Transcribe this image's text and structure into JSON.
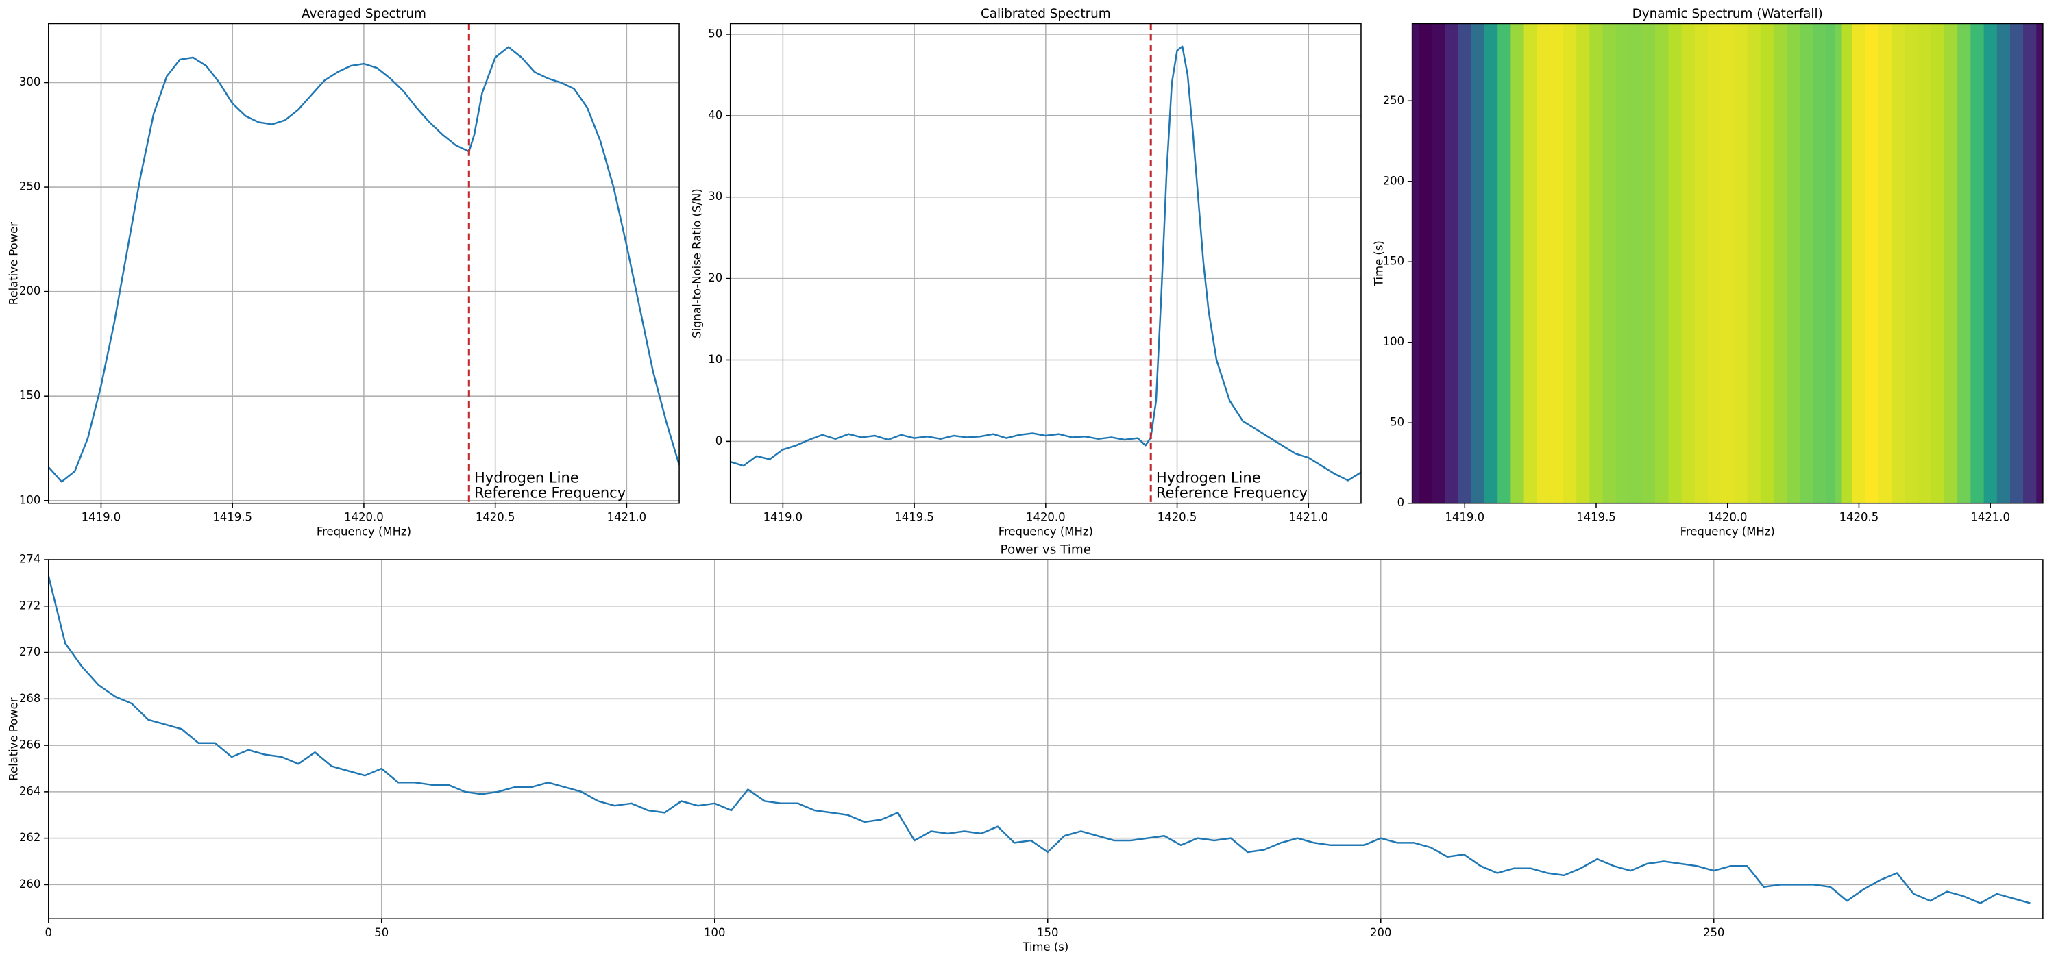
{
  "chart_data": [
    {
      "type": "line",
      "title": "Averaged Spectrum",
      "x_label": "Frequency (MHz)",
      "y_label": "Relative Power",
      "color": "#1f77b4",
      "grid": true,
      "x": [
        1418.8,
        1418.85,
        1418.9,
        1418.95,
        1419.0,
        1419.05,
        1419.1,
        1419.15,
        1419.2,
        1419.25,
        1419.3,
        1419.35,
        1419.4,
        1419.45,
        1419.5,
        1419.55,
        1419.6,
        1419.65,
        1419.7,
        1419.75,
        1419.8,
        1419.85,
        1419.9,
        1419.95,
        1420.0,
        1420.05,
        1420.1,
        1420.15,
        1420.2,
        1420.25,
        1420.3,
        1420.35,
        1420.4,
        1420.42,
        1420.45,
        1420.5,
        1420.55,
        1420.6,
        1420.65,
        1420.7,
        1420.75,
        1420.8,
        1420.85,
        1420.9,
        1420.95,
        1421.0,
        1421.05,
        1421.1,
        1421.15,
        1421.2
      ],
      "values": [
        116,
        109,
        114,
        130,
        155,
        185,
        220,
        255,
        285,
        303,
        311,
        312,
        308,
        300,
        290,
        284,
        281,
        280,
        282,
        287,
        294,
        301,
        305,
        308,
        309,
        307,
        302,
        296,
        288,
        281,
        275,
        270,
        267,
        275,
        295,
        312,
        317,
        312,
        305,
        302,
        300,
        297,
        288,
        272,
        250,
        222,
        192,
        162,
        138,
        117
      ],
      "xlim": [
        1418.8,
        1421.2
      ],
      "xticks": [
        {
          "value": 1419,
          "label": "1419.0"
        },
        1419.5,
        {
          "value": 1420,
          "label": "1420.0"
        },
        1420.5,
        {
          "value": 1421,
          "label": "1421.0"
        }
      ],
      "ylim": [
        98.7,
        328.2
      ],
      "yticks": [
        100,
        150,
        200,
        250,
        300
      ],
      "reference_line": {
        "x": 1420.4,
        "color": "#c0282d",
        "annotation": [
          "Hydrogen Line",
          "Reference Frequency"
        ]
      }
    },
    {
      "type": "line",
      "title": "Calibrated Spectrum",
      "x_label": "Frequency (MHz)",
      "y_label": "Signal-to-Noise Ratio (S/N)",
      "color": "#1f77b4",
      "grid": true,
      "x": [
        1418.8,
        1418.85,
        1418.9,
        1418.95,
        1419.0,
        1419.05,
        1419.1,
        1419.15,
        1419.2,
        1419.25,
        1419.3,
        1419.35,
        1419.4,
        1419.45,
        1419.5,
        1419.55,
        1419.6,
        1419.65,
        1419.7,
        1419.75,
        1419.8,
        1419.85,
        1419.9,
        1419.95,
        1420.0,
        1420.05,
        1420.1,
        1420.15,
        1420.2,
        1420.25,
        1420.3,
        1420.35,
        1420.38,
        1420.4,
        1420.42,
        1420.44,
        1420.46,
        1420.48,
        1420.5,
        1420.52,
        1420.54,
        1420.56,
        1420.58,
        1420.6,
        1420.62,
        1420.65,
        1420.7,
        1420.75,
        1420.8,
        1420.85,
        1420.9,
        1420.95,
        1421.0,
        1421.05,
        1421.1,
        1421.15,
        1421.2
      ],
      "values": [
        -2.5,
        -3.0,
        -1.8,
        -2.2,
        -1.0,
        -0.5,
        0.2,
        0.8,
        0.3,
        0.9,
        0.5,
        0.7,
        0.2,
        0.8,
        0.4,
        0.6,
        0.3,
        0.7,
        0.5,
        0.6,
        0.9,
        0.4,
        0.8,
        1.0,
        0.7,
        0.9,
        0.5,
        0.6,
        0.3,
        0.5,
        0.2,
        0.4,
        -0.5,
        0.5,
        5,
        18,
        33,
        44,
        48,
        48.5,
        45,
        38,
        30,
        22,
        16,
        10,
        5,
        2.5,
        1.5,
        0.5,
        -0.5,
        -1.5,
        -2.0,
        -3.0,
        -4.0,
        -4.8,
        -3.8
      ],
      "xlim": [
        1418.8,
        1421.2
      ],
      "xticks": [
        {
          "value": 1419,
          "label": "1419.0"
        },
        1419.5,
        {
          "value": 1420,
          "label": "1420.0"
        },
        1420.5,
        {
          "value": 1421,
          "label": "1421.0"
        }
      ],
      "ylim": [
        -7.6,
        51.3
      ],
      "yticks": [
        0,
        10,
        20,
        30,
        40,
        50
      ],
      "reference_line": {
        "x": 1420.4,
        "color": "#c0282d",
        "annotation": [
          "Hydrogen Line",
          "Reference Frequency"
        ]
      }
    },
    {
      "type": "heatmap",
      "title": "Dynamic Spectrum (Waterfall)",
      "x_label": "Frequency (MHz)",
      "y_label": "Time (s)",
      "colormap": "viridis",
      "grid": false,
      "x": [
        1418.8,
        1418.85,
        1418.9,
        1418.95,
        1419.0,
        1419.05,
        1419.1,
        1419.15,
        1419.2,
        1419.25,
        1419.3,
        1419.35,
        1419.4,
        1419.45,
        1419.5,
        1419.55,
        1419.6,
        1419.65,
        1419.7,
        1419.75,
        1419.8,
        1419.85,
        1419.9,
        1419.95,
        1420.0,
        1420.05,
        1420.1,
        1420.15,
        1420.2,
        1420.25,
        1420.3,
        1420.35,
        1420.4,
        1420.42,
        1420.45,
        1420.5,
        1420.55,
        1420.6,
        1420.65,
        1420.7,
        1420.75,
        1420.8,
        1420.85,
        1420.9,
        1420.95,
        1421.0,
        1421.05,
        1421.1,
        1421.15,
        1421.2
      ],
      "values": [
        116,
        109,
        114,
        130,
        155,
        185,
        220,
        255,
        285,
        303,
        311,
        312,
        308,
        300,
        290,
        284,
        281,
        280,
        282,
        287,
        294,
        301,
        305,
        308,
        309,
        307,
        302,
        296,
        288,
        281,
        275,
        270,
        267,
        275,
        295,
        312,
        317,
        312,
        305,
        302,
        300,
        297,
        288,
        272,
        250,
        222,
        192,
        162,
        138,
        117
      ],
      "clim": [
        109,
        317
      ],
      "xlim": [
        1418.8,
        1421.2
      ],
      "xticks": [
        {
          "value": 1419,
          "label": "1419.0"
        },
        1419.5,
        {
          "value": 1420,
          "label": "1420.0"
        },
        1420.5,
        {
          "value": 1421,
          "label": "1421.0"
        }
      ],
      "ylim": [
        0,
        298
      ],
      "yticks": [
        0,
        50,
        100,
        150,
        200,
        250
      ]
    },
    {
      "type": "line",
      "title": "Power vs Time",
      "x_label": "Time (s)",
      "y_label": "Relative Power",
      "color": "#1f77b4",
      "grid": true,
      "x": [
        0,
        2.5,
        5,
        7.5,
        10,
        12.5,
        15,
        17.5,
        20,
        22.5,
        25,
        27.5,
        30,
        32.5,
        35,
        37.5,
        40,
        42.5,
        45,
        47.5,
        50,
        52.5,
        55,
        57.5,
        60,
        62.5,
        65,
        67.5,
        70,
        72.5,
        75,
        77.5,
        80,
        82.5,
        85,
        87.5,
        90,
        92.5,
        95,
        97.5,
        100,
        102.5,
        105,
        107.5,
        110,
        112.5,
        115,
        117.5,
        120,
        122.5,
        125,
        127.5,
        130,
        132.5,
        135,
        137.5,
        140,
        142.5,
        145,
        147.5,
        150,
        152.5,
        155,
        157.5,
        160,
        162.5,
        165,
        167.5,
        170,
        172.5,
        175,
        177.5,
        180,
        182.5,
        185,
        187.5,
        190,
        192.5,
        195,
        197.5,
        200,
        202.5,
        205,
        207.5,
        210,
        212.5,
        215,
        217.5,
        220,
        222.5,
        225,
        227.5,
        230,
        232.5,
        235,
        237.5,
        240,
        242.5,
        245,
        247.5,
        250,
        252.5,
        255,
        257.5,
        260,
        262.5,
        265,
        267.5,
        270,
        272.5,
        275,
        277.5,
        280,
        282.5,
        285,
        287.5,
        290,
        292.5,
        295,
        297.5
      ],
      "values": [
        273.3,
        270.4,
        269.4,
        268.6,
        268.1,
        267.8,
        267.1,
        266.9,
        266.7,
        266.1,
        266.1,
        265.5,
        265.8,
        265.6,
        265.5,
        265.2,
        265.7,
        265.1,
        264.9,
        264.7,
        265.0,
        264.4,
        264.4,
        264.3,
        264.3,
        264.0,
        263.9,
        264.0,
        264.2,
        264.2,
        264.4,
        264.2,
        264.0,
        263.6,
        263.4,
        263.5,
        263.2,
        263.1,
        263.6,
        263.4,
        263.5,
        263.2,
        264.1,
        263.6,
        263.5,
        263.5,
        263.2,
        263.1,
        263.0,
        262.7,
        262.8,
        263.1,
        261.9,
        262.3,
        262.2,
        262.3,
        262.2,
        262.5,
        261.8,
        261.9,
        261.4,
        262.1,
        262.3,
        262.1,
        261.9,
        261.9,
        262.0,
        262.1,
        261.7,
        262.0,
        261.9,
        262.0,
        261.4,
        261.5,
        261.8,
        262.0,
        261.8,
        261.7,
        261.7,
        261.7,
        262.0,
        261.8,
        261.8,
        261.6,
        261.2,
        261.3,
        260.8,
        260.5,
        260.7,
        260.7,
        260.5,
        260.4,
        260.7,
        261.1,
        260.8,
        260.6,
        260.9,
        261.0,
        260.9,
        260.8,
        260.6,
        260.8,
        260.8,
        259.9,
        260.0,
        260.0,
        260.0,
        259.9,
        259.3,
        259.8,
        260.2,
        260.5,
        259.6,
        259.3,
        259.7,
        259.5,
        259.2,
        259.6,
        259.4,
        259.2
      ],
      "xlim": [
        0,
        299.4
      ],
      "xticks": [
        0,
        50,
        100,
        150,
        200,
        250
      ],
      "ylim": [
        258.53,
        274
      ],
      "yticks": [
        260,
        262,
        264,
        266,
        268,
        270,
        272,
        274
      ]
    }
  ]
}
